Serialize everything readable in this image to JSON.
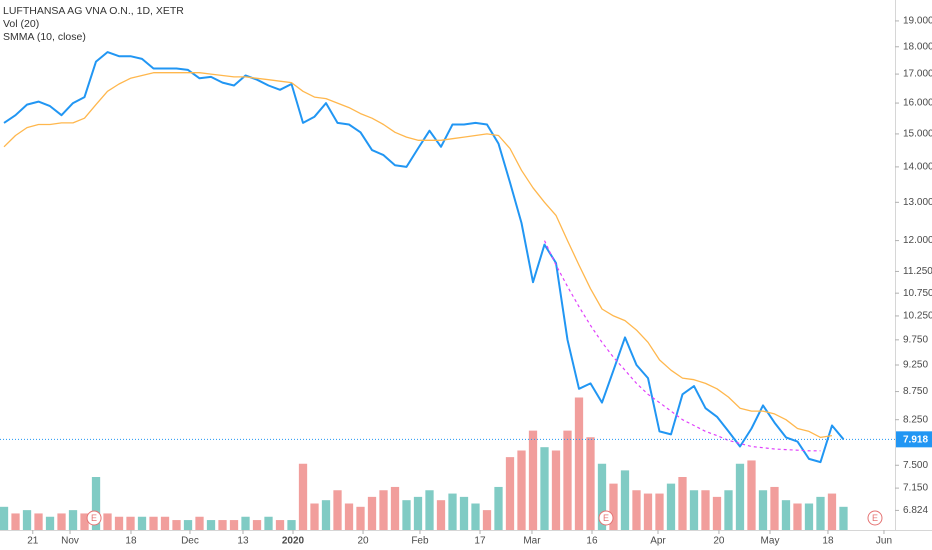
{
  "chart_data": {
    "type": "line",
    "log_scale": true,
    "grid": false,
    "legend": "top-left",
    "xlim": [
      -0.35,
      77.48
    ],
    "ylim": [
      6.55,
      19.85
    ],
    "y2lim": [
      0,
      160
    ],
    "xticks": [
      {
        "value": 2.5,
        "label": "21"
      },
      {
        "value": 5.74,
        "label": "Nov"
      },
      {
        "value": 11.04,
        "label": "18"
      },
      {
        "value": 16.17,
        "label": "Dec"
      },
      {
        "value": 20.78,
        "label": "13"
      },
      {
        "value": 25.13,
        "label": "2020"
      },
      {
        "value": 31.22,
        "label": "20"
      },
      {
        "value": 36.17,
        "label": "Feb"
      },
      {
        "value": 41.39,
        "label": "17"
      },
      {
        "value": 45.91,
        "label": "Mar"
      },
      {
        "value": 51.13,
        "label": "16"
      },
      {
        "value": 56.87,
        "label": "Apr"
      },
      {
        "value": 62.17,
        "label": "20"
      },
      {
        "value": 66.61,
        "label": "May"
      },
      {
        "value": 71.65,
        "label": "18"
      },
      {
        "value": 76.52,
        "label": "Jun"
      }
    ],
    "yticks": [
      {
        "value": 19,
        "label": "19.000"
      },
      {
        "value": 18,
        "label": "18.000"
      },
      {
        "value": 17,
        "label": "17.000"
      },
      {
        "value": 16,
        "label": "16.000"
      },
      {
        "value": 15,
        "label": "15.000"
      },
      {
        "value": 14,
        "label": "14.000"
      },
      {
        "value": 13,
        "label": "13.000"
      },
      {
        "value": 12,
        "label": "12.000"
      },
      {
        "value": 11.25,
        "label": "11.250"
      },
      {
        "value": 10.75,
        "label": "10.750"
      },
      {
        "value": 10.25,
        "label": "10.250"
      },
      {
        "value": 9.75,
        "label": "9.750"
      },
      {
        "value": 9.25,
        "label": "9.250"
      },
      {
        "value": 8.75,
        "label": "8.750"
      },
      {
        "value": 8.25,
        "label": "8.250"
      },
      {
        "value": 7.5,
        "label": "7.500"
      },
      {
        "value": 7.15,
        "label": "7.150"
      },
      6.824
    ],
    "last_price": {
      "value": 7.918,
      "label": "7.918",
      "color": "#2196f3"
    },
    "events": [
      {
        "x": 7.83,
        "label": "E"
      },
      {
        "x": 52.35,
        "label": "E"
      },
      {
        "x": 75.74,
        "label": "E"
      }
    ],
    "series": [
      {
        "name": "LUFTHANSA AG VNA O.N., 1D, XETR",
        "type": "line",
        "color": "#2196f3",
        "values": [
          15.35,
          15.6,
          15.95,
          16.05,
          15.9,
          15.6,
          16.0,
          16.2,
          17.45,
          17.8,
          17.65,
          17.65,
          17.55,
          17.2,
          17.2,
          17.2,
          17.15,
          16.85,
          16.9,
          16.7,
          16.6,
          16.95,
          16.8,
          16.6,
          16.45,
          16.65,
          15.35,
          15.55,
          16.0,
          15.35,
          15.3,
          15.05,
          14.5,
          14.35,
          14.05,
          14.0,
          14.55,
          15.1,
          14.6,
          15.3,
          15.3,
          15.35,
          15.3,
          14.7,
          13.55,
          12.45,
          11.0,
          11.9,
          11.45,
          9.75,
          8.8,
          8.9,
          8.55,
          9.15,
          9.8,
          9.25,
          9.0,
          8.05,
          8.0,
          8.7,
          8.85,
          8.45,
          8.3,
          8.05,
          7.8,
          8.1,
          8.5,
          8.2,
          7.95,
          7.88,
          7.6,
          7.55,
          8.15,
          7.918
        ]
      },
      {
        "name": "Vol (20)",
        "type": "bar",
        "axis": "y2",
        "values": [
          7,
          5,
          6,
          5,
          4,
          5,
          6,
          5,
          16,
          5,
          4,
          4,
          4,
          4,
          4,
          3,
          3,
          4,
          3,
          3,
          3,
          4,
          3,
          4,
          3,
          3,
          20,
          8,
          9,
          12,
          8,
          7,
          10,
          12,
          13,
          9,
          10,
          12,
          9,
          11,
          10,
          8,
          6,
          13,
          22,
          24,
          30,
          25,
          24,
          30,
          40,
          28,
          20,
          14,
          18,
          12,
          11,
          11,
          14,
          16,
          12,
          12,
          10,
          12,
          20,
          21,
          12,
          13,
          9,
          8,
          8,
          10,
          11,
          7
        ],
        "colors": [
          "#80cbc4",
          "#f19e9c",
          "#80cbc4",
          "#f19e9c",
          "#80cbc4",
          "#f19e9c",
          "#80cbc4",
          "#f19e9c",
          "#80cbc4",
          "#f19e9c",
          "#f19e9c",
          "#f19e9c",
          "#80cbc4",
          "#f19e9c",
          "#f19e9c",
          "#f19e9c",
          "#80cbc4",
          "#f19e9c",
          "#80cbc4",
          "#f19e9c",
          "#f19e9c",
          "#80cbc4",
          "#f19e9c",
          "#80cbc4",
          "#f19e9c",
          "#80cbc4",
          "#f19e9c",
          "#f19e9c",
          "#80cbc4",
          "#f19e9c",
          "#f19e9c",
          "#f19e9c",
          "#f19e9c",
          "#f19e9c",
          "#f19e9c",
          "#80cbc4",
          "#80cbc4",
          "#80cbc4",
          "#f19e9c",
          "#80cbc4",
          "#80cbc4",
          "#80cbc4",
          "#f19e9c",
          "#80cbc4",
          "#f19e9c",
          "#f19e9c",
          "#f19e9c",
          "#80cbc4",
          "#f19e9c",
          "#f19e9c",
          "#f19e9c",
          "#f19e9c",
          "#80cbc4",
          "#f19e9c",
          "#80cbc4",
          "#f19e9c",
          "#f19e9c",
          "#f19e9c",
          "#80cbc4",
          "#f19e9c",
          "#80cbc4",
          "#f19e9c",
          "#f19e9c",
          "#80cbc4",
          "#80cbc4",
          "#f19e9c",
          "#80cbc4",
          "#f19e9c",
          "#80cbc4",
          "#f19e9c",
          "#80cbc4",
          "#80cbc4",
          "#f19e9c",
          "#80cbc4"
        ]
      },
      {
        "name": "SMMA (10, close)",
        "type": "line",
        "color": "#ffb74d",
        "values": [
          14.6,
          14.95,
          15.2,
          15.3,
          15.3,
          15.35,
          15.35,
          15.5,
          15.95,
          16.4,
          16.65,
          16.85,
          16.95,
          17.05,
          17.05,
          17.05,
          17.05,
          17.05,
          17.0,
          16.95,
          16.9,
          16.9,
          16.85,
          16.8,
          16.75,
          16.7,
          16.4,
          16.2,
          16.15,
          16.0,
          15.85,
          15.65,
          15.5,
          15.3,
          15.05,
          14.9,
          14.8,
          14.8,
          14.8,
          14.85,
          14.9,
          14.95,
          15.0,
          14.95,
          14.55,
          13.9,
          13.4,
          13.0,
          12.65,
          12.0,
          11.4,
          10.85,
          10.4,
          10.25,
          10.15,
          9.95,
          9.7,
          9.35,
          9.15,
          9.0,
          8.97,
          8.9,
          8.8,
          8.65,
          8.45,
          8.4,
          8.4,
          8.35,
          8.25,
          8.1,
          8.05,
          7.95,
          7.98,
          null
        ]
      },
      {
        "type": "line",
        "color": "#e040fb",
        "dash": true,
        "values": [
          null,
          null,
          null,
          null,
          null,
          null,
          null,
          null,
          null,
          null,
          null,
          null,
          null,
          null,
          null,
          null,
          null,
          null,
          null,
          null,
          null,
          null,
          null,
          null,
          null,
          null,
          null,
          null,
          null,
          null,
          null,
          null,
          null,
          null,
          null,
          null,
          null,
          null,
          null,
          null,
          null,
          null,
          null,
          null,
          null,
          null,
          null,
          12.0,
          11.4,
          10.9,
          10.45,
          10.05,
          9.7,
          9.4,
          9.15,
          8.9,
          8.7,
          8.55,
          8.4,
          8.25,
          8.15,
          8.05,
          7.98,
          7.9,
          7.85,
          7.8,
          7.78,
          7.76,
          7.75,
          7.74,
          7.73,
          7.73,
          null,
          null
        ]
      }
    ]
  }
}
